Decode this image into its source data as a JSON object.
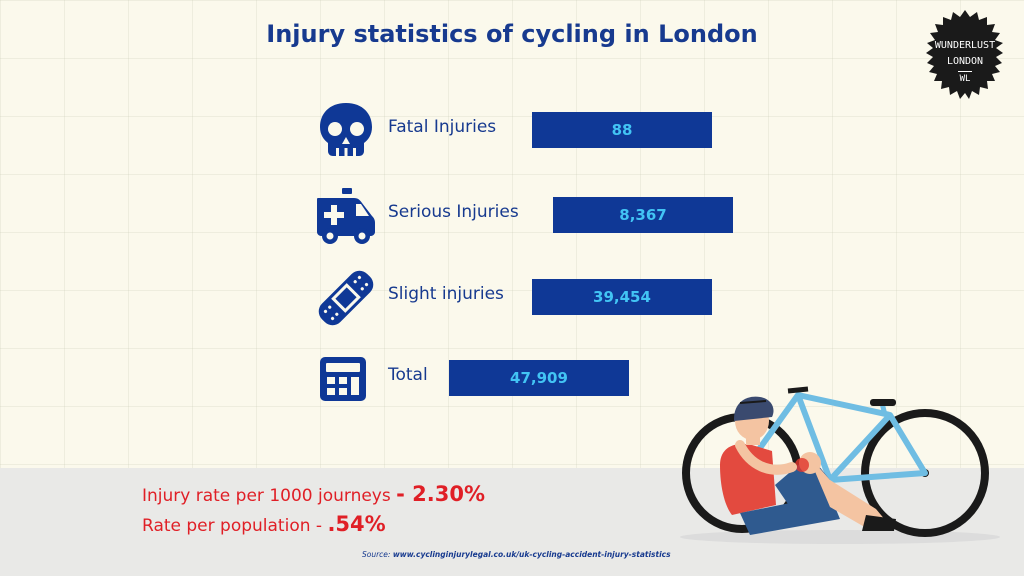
{
  "title": "Injury statistics of cycling in London",
  "badge": {
    "line1": "WUNDERLUST",
    "line2": "LONDON",
    "line3": "WL"
  },
  "rows": [
    {
      "icon": "skull-icon",
      "label": "Fatal Injuries",
      "value": "88"
    },
    {
      "icon": "ambulance-icon",
      "label": "Serious Injuries",
      "value": "8,367"
    },
    {
      "icon": "bandage-icon",
      "label": "Slight injuries",
      "value": "39,454"
    },
    {
      "icon": "calculator-icon",
      "label": "Total",
      "value": "47,909"
    }
  ],
  "stats": [
    {
      "label": "Injury rate per 1000 journeys",
      "value": "- 2.30%"
    },
    {
      "label": "Rate per population - ",
      "value": ".54%"
    }
  ],
  "source": {
    "prefix": "Source: ",
    "url": "www.cyclinginjurylegal.co.uk/uk-cycling-accident-injury-statistics"
  },
  "colors": {
    "navy": "#0f3896",
    "title": "#173a8f",
    "value_text": "#42c4f4",
    "red": "#e01f26",
    "background": "#fbf9ec"
  }
}
